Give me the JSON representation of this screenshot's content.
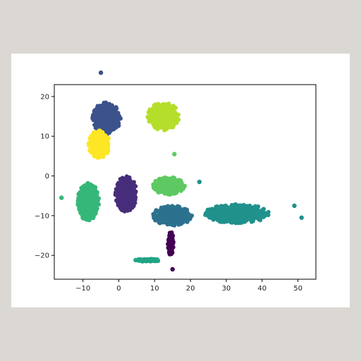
{
  "colors": {
    "background": "#dbd7d3",
    "figure": "#ffffff",
    "axis": "#000000"
  },
  "chart_data": {
    "type": "scatter",
    "title": "",
    "xlabel": "",
    "ylabel": "",
    "xlim": [
      -18,
      55
    ],
    "ylim": [
      -26,
      23
    ],
    "grid": false,
    "legend": "none",
    "xticks": [
      -10,
      0,
      10,
      20,
      30,
      40,
      50
    ],
    "yticks": [
      -20,
      -10,
      0,
      10,
      20
    ],
    "xtick_labels": [
      "−10",
      "0",
      "10",
      "20",
      "30",
      "40",
      "50"
    ],
    "ytick_labels": [
      "−20",
      "−10",
      "0",
      "10",
      "20"
    ],
    "clusters": [
      {
        "color": "#3b528b",
        "center": [
          -3.5,
          14.5
        ],
        "spread": [
          4.0,
          4.0
        ],
        "count": 400
      },
      {
        "color": "#b5de2b",
        "center": [
          12.5,
          15.0
        ],
        "spread": [
          4.5,
          3.5
        ],
        "count": 400
      },
      {
        "color": "#fde725",
        "center": [
          -5.5,
          8.0
        ],
        "spread": [
          3.0,
          3.5
        ],
        "count": 320
      },
      {
        "color": "#5ec962",
        "center": [
          14.0,
          -2.5
        ],
        "spread": [
          4.5,
          2.2
        ],
        "count": 320
      },
      {
        "color": "#35b779",
        "center": [
          -8.5,
          -6.5
        ],
        "spread": [
          3.0,
          4.8
        ],
        "count": 420
      },
      {
        "color": "#472d7b",
        "center": [
          2.0,
          -4.5
        ],
        "spread": [
          3.0,
          4.5
        ],
        "count": 380
      },
      {
        "color": "#2c728e",
        "center": [
          15.0,
          -10.0
        ],
        "spread": [
          5.5,
          2.5
        ],
        "count": 380
      },
      {
        "color": "#21918c",
        "center": [
          33.0,
          -9.5
        ],
        "spread": [
          9.0,
          2.4
        ],
        "count": 520
      },
      {
        "color": "#440154",
        "center": [
          14.5,
          -17.0
        ],
        "spread": [
          0.8,
          3.0
        ],
        "count": 120
      },
      {
        "color": "#21a585",
        "center": [
          8.0,
          -21.2
        ],
        "spread": [
          3.5,
          0.35
        ],
        "count": 110
      }
    ],
    "outliers": [
      {
        "x": -5,
        "y": 26,
        "color": "#3b528b"
      },
      {
        "x": 49,
        "y": -7.5,
        "color": "#21918c"
      },
      {
        "x": 51,
        "y": -10.5,
        "color": "#21918c"
      },
      {
        "x": 15.5,
        "y": 5.5,
        "color": "#5ec962"
      },
      {
        "x": 22.5,
        "y": -1.5,
        "color": "#21918c"
      },
      {
        "x": -16,
        "y": -5.5,
        "color": "#35b779"
      },
      {
        "x": 15,
        "y": -23.5,
        "color": "#440154"
      }
    ]
  }
}
